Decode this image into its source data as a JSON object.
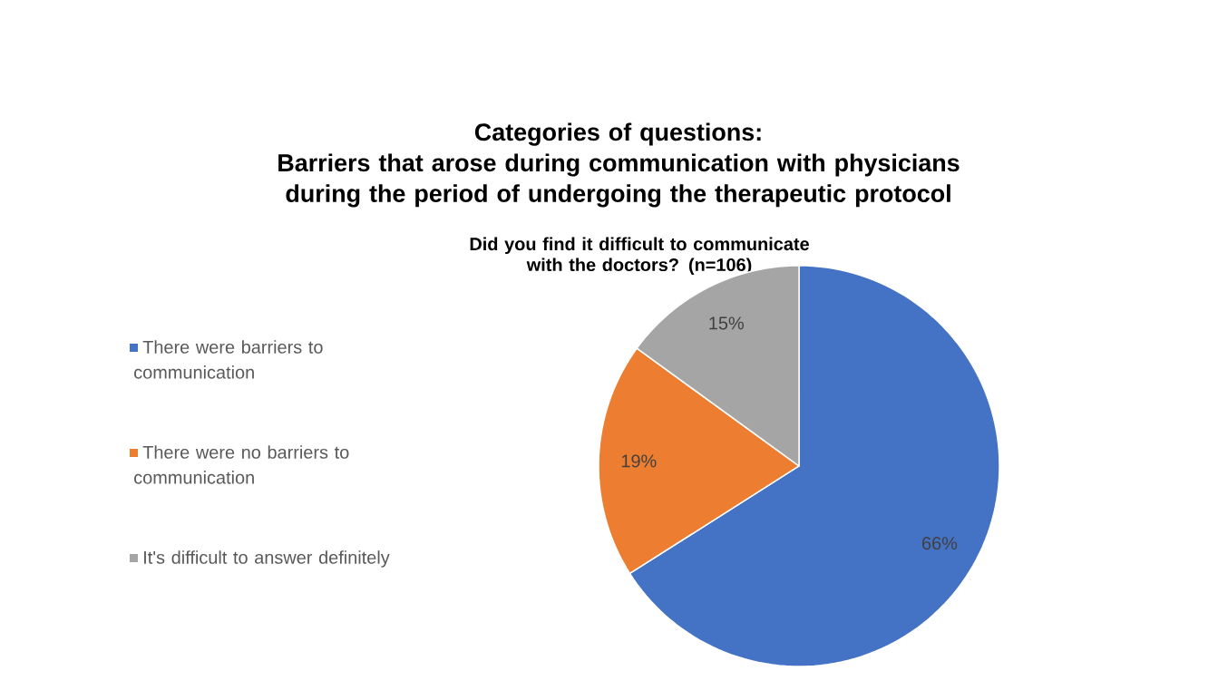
{
  "chart_data": {
    "type": "pie",
    "title": "Categories of questions:",
    "subtitle": "Barriers that arose during communication with physicians during the period of undergoing the therapeutic protocol",
    "annotations": [
      "Did you find it difficult to communicate with the doctors? (n=106)"
    ],
    "categories": [
      "There were barriers to communication",
      "There were no barriers to communication",
      "It's difficult to answer definitely"
    ],
    "values": [
      66,
      19,
      15
    ],
    "value_labels": [
      "66%",
      "19%",
      "15%"
    ],
    "colors": [
      "#4472c4",
      "#ed7d31",
      "#a5a5a5"
    ],
    "legend": "left"
  }
}
